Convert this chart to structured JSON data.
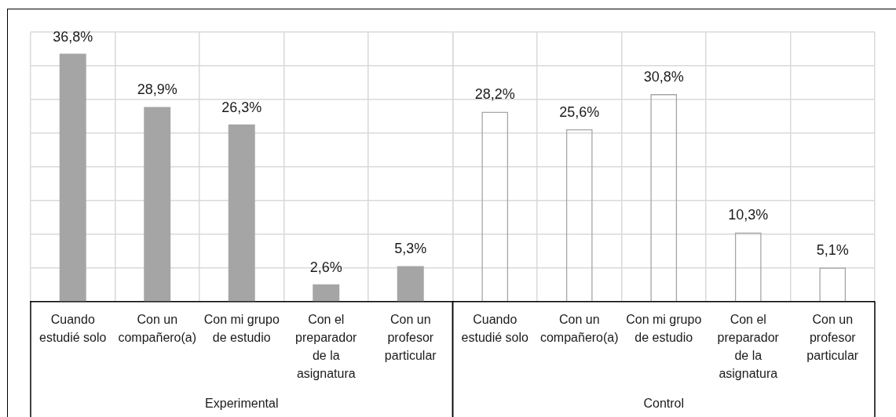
{
  "chart_data": [
    {
      "type": "bar",
      "xlabel": "Experimental",
      "categories": [
        "Cuando estudié solo",
        "Con un compañero(a)",
        "Con mi grupo de estudio",
        "Con el preparador de la asignatura",
        "Con un profesor particular"
      ],
      "values": [
        36.8,
        28.9,
        26.3,
        2.6,
        5.3
      ],
      "value_labels": [
        "36,8%",
        "28,9%",
        "26,3%",
        "2,6%",
        "5,3%"
      ],
      "color": "#a5a5a5",
      "ylim": [
        0,
        40
      ],
      "yticks": [
        {
          "value": 0,
          "label": null
        },
        {
          "value": 5,
          "label": null
        },
        {
          "value": 10,
          "label": null
        },
        {
          "value": 15,
          "label": null
        },
        {
          "value": 20,
          "label": null
        },
        {
          "value": 25,
          "label": null
        },
        {
          "value": 30,
          "label": null
        },
        {
          "value": 35,
          "label": null
        },
        {
          "value": 40,
          "label": null
        }
      ],
      "grid": true,
      "tick_labels": "x"
    },
    {
      "type": "bar",
      "xlabel": "Control",
      "categories": [
        "Cuando estudié solo",
        "Con un compañero(a)",
        "Con mi grupo de estudio",
        "Con el preparador de la asignatura",
        "Con un profesor particular"
      ],
      "values": [
        28.2,
        25.6,
        30.8,
        10.3,
        5.1
      ],
      "value_labels": [
        "28,2%",
        "25,6%",
        "30,8%",
        "10,3%",
        "5,1%"
      ],
      "color": "#a6a6a6",
      "ylim": [
        0,
        40
      ],
      "yticks": [
        {
          "value": 0,
          "label": null
        },
        {
          "value": 5,
          "label": null
        },
        {
          "value": 10,
          "label": null
        },
        {
          "value": 15,
          "label": null
        },
        {
          "value": 20,
          "label": null
        },
        {
          "value": 25,
          "label": null
        },
        {
          "value": 30,
          "label": null
        },
        {
          "value": 35,
          "label": null
        },
        {
          "value": 40,
          "label": null
        }
      ],
      "grid": true,
      "tick_labels": "x"
    }
  ]
}
